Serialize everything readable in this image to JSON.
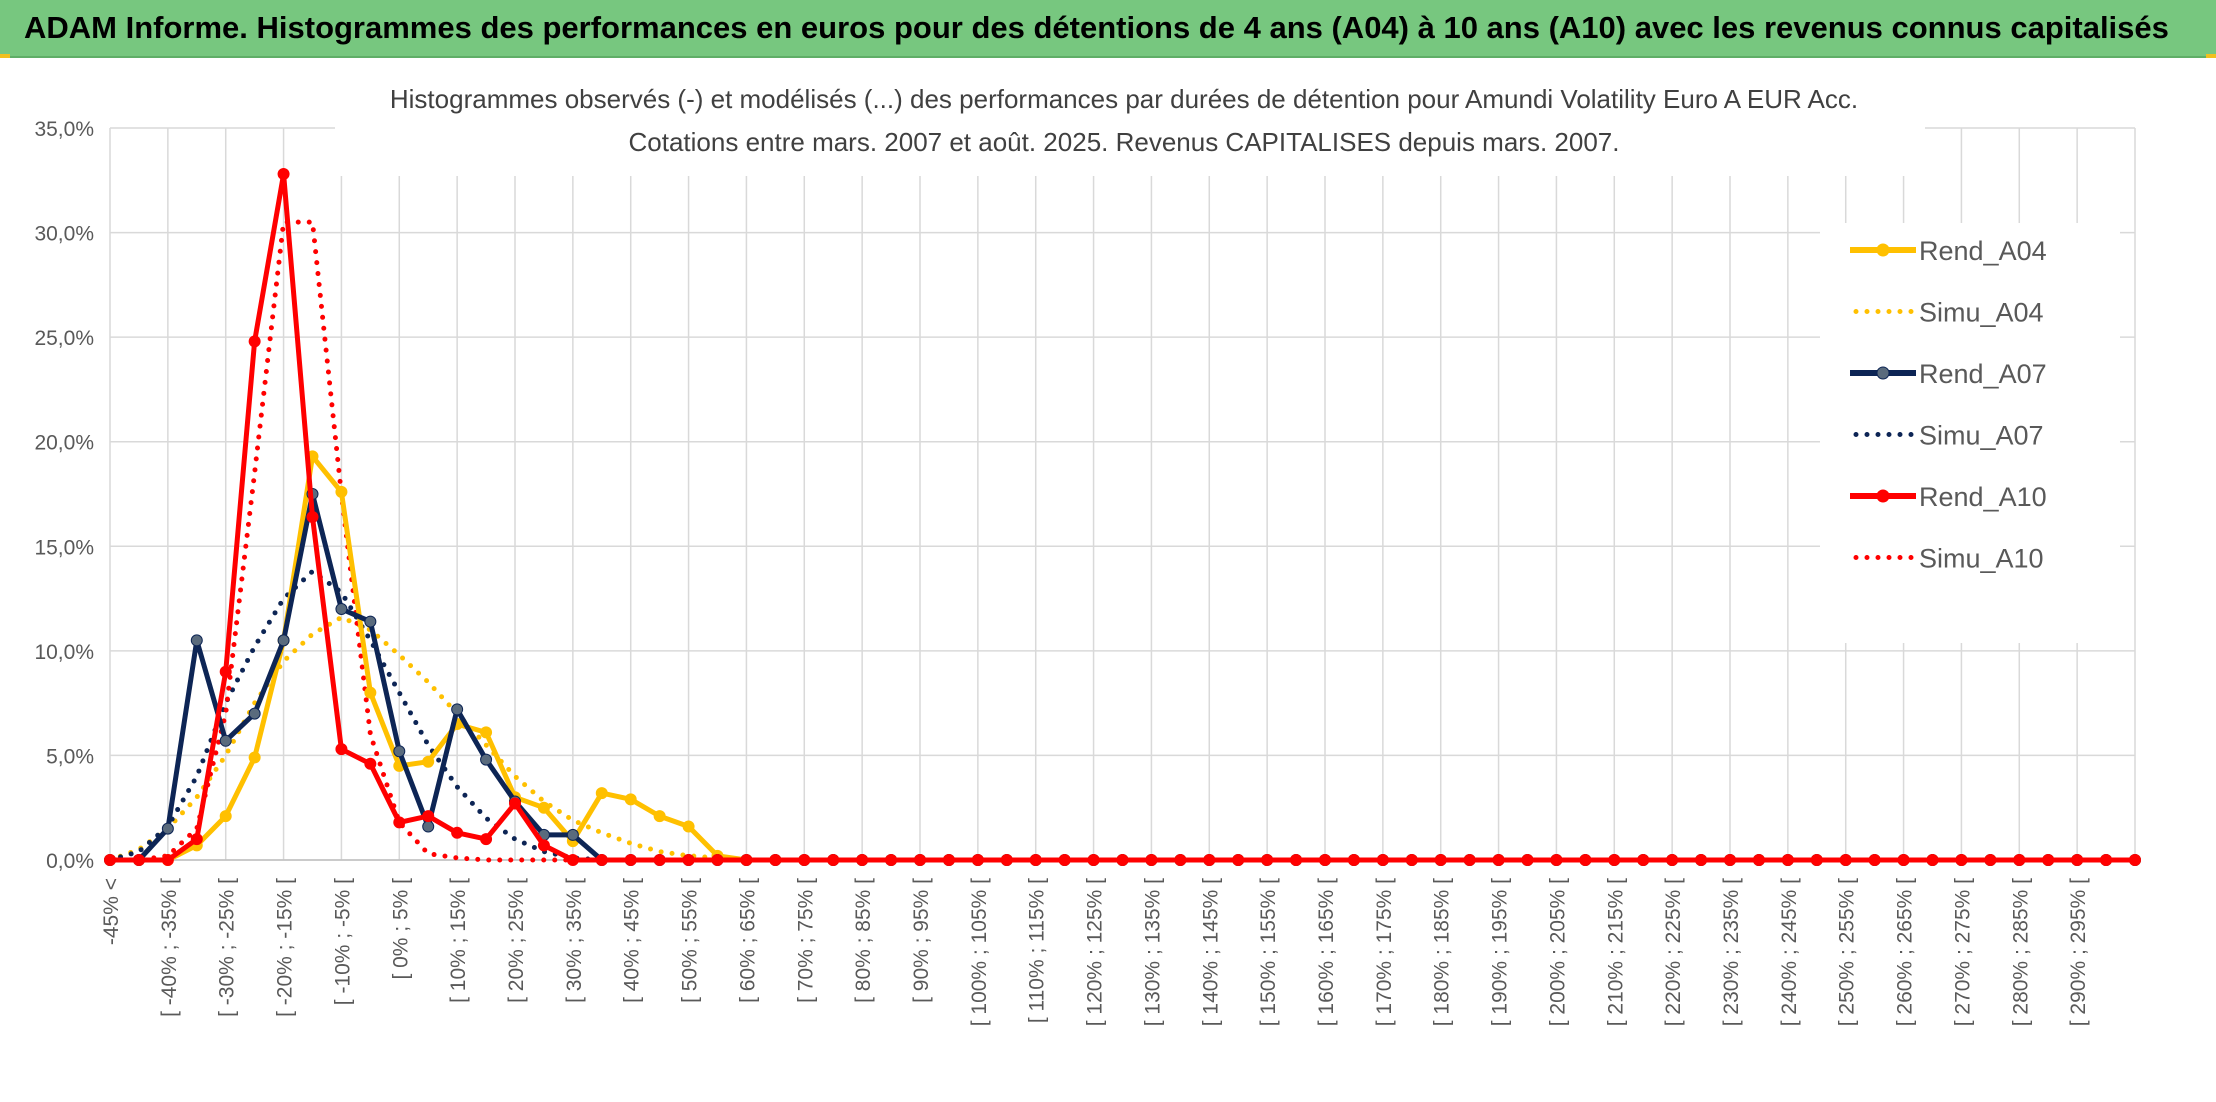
{
  "banner": {
    "title": "ADAM Informe. Histogrammes des performances en euros pour des détentions de 4 ans (A04) à 10 ans (A10) avec les revenus connus capitalisés"
  },
  "chart_data": {
    "type": "line",
    "title": "Histogrammes observés (-) et modélisés (...) des performances par durées de détention pour Amundi Volatility Euro A EUR Acc.",
    "subtitle": "Cotations entre mars. 2007 et août. 2025. Revenus CAPITALISES depuis mars. 2007.",
    "ylim": [
      0,
      35
    ],
    "yticks": [
      "0,0%",
      "5,0%",
      "10,0%",
      "15,0%",
      "20,0%",
      "25,0%",
      "30,0%",
      "35,0%"
    ],
    "legend_position": "right",
    "grid": true,
    "n_points": 71,
    "x_tick_labels": [
      "-45% <",
      "[ -40% ; -35% [",
      "[ -30% ; -25% [",
      "[ -20% ; -15% [",
      "[ -10% ; -5% [",
      "[ 0% ; 5% [",
      "[ 10% ; 15% [",
      "[ 20% ; 25% [",
      "[ 30% ; 35% [",
      "[ 40% ; 45% [",
      "[ 50% ; 55% [",
      "[ 60% ; 65% [",
      "[ 70% ; 75% [",
      "[ 80% ; 85% [",
      "[ 90% ; 95% [",
      "[ 100% ; 105% [",
      "[ 110% ; 115% [",
      "[ 120% ; 125% [",
      "[ 130% ; 135% [",
      "[ 140% ; 145% [",
      "[ 150% ; 155% [",
      "[ 160% ; 165% [",
      "[ 170% ; 175% [",
      "[ 180% ; 185% [",
      "[ 190% ; 195% [",
      "[ 200% ; 205% [",
      "[ 210% ; 215% [",
      "[ 220% ; 225% [",
      "[ 230% ; 235% [",
      "[ 240% ; 245% [",
      "[ 250% ; 255% [",
      "[ 260% ; 265% [",
      "[ 270% ; 275% [",
      "[ 280% ; 285% [",
      "[ 290% ; 295% ["
    ],
    "series": [
      {
        "name": "Rend_A04",
        "style": "solid",
        "color": "#ffc000",
        "values": [
          0,
          0,
          0,
          0.7,
          2.1,
          4.9,
          10.5,
          19.3,
          17.6,
          8.0,
          4.5,
          4.7,
          6.5,
          6.1,
          3.0,
          2.5,
          0.9,
          3.2,
          2.9,
          2.1,
          1.6,
          0.2,
          0
        ]
      },
      {
        "name": "Simu_A04",
        "style": "dotted",
        "color": "#ffc000",
        "values": [
          0,
          0.5,
          1.5,
          3.0,
          5.0,
          7.5,
          9.5,
          10.8,
          11.6,
          11.0,
          9.8,
          8.5,
          7.0,
          5.5,
          4.0,
          2.8,
          1.9,
          1.3,
          0.8,
          0.4,
          0.2,
          0.1,
          0
        ]
      },
      {
        "name": "Rend_A07",
        "style": "solid",
        "color": "#0d2555",
        "values": [
          0,
          0,
          1.5,
          10.5,
          5.7,
          7.0,
          10.5,
          17.5,
          12.0,
          11.4,
          5.2,
          1.6,
          7.2,
          4.8,
          2.8,
          1.2,
          1.2,
          0,
          0
        ]
      },
      {
        "name": "Simu_A07",
        "style": "dotted",
        "color": "#0d2555",
        "values": [
          0,
          0.4,
          1.6,
          4.0,
          7.5,
          10.2,
          12.5,
          13.8,
          12.8,
          10.5,
          8.0,
          5.5,
          3.5,
          2.0,
          1.0,
          0.4,
          0.1,
          0
        ]
      },
      {
        "name": "Rend_A10",
        "style": "solid",
        "color": "#ff0000",
        "values": [
          0,
          0,
          0,
          1.0,
          9.0,
          24.8,
          32.8,
          16.4,
          5.3,
          4.6,
          1.8,
          2.1,
          1.3,
          1.0,
          2.7,
          0.7,
          0
        ]
      },
      {
        "name": "Simu_A10",
        "style": "dotted",
        "color": "#ff0000",
        "values": [
          0,
          0,
          0.2,
          1.5,
          7.0,
          18.5,
          30.5,
          30.5,
          17.5,
          6.0,
          1.8,
          0.3,
          0.1,
          0
        ]
      }
    ]
  }
}
